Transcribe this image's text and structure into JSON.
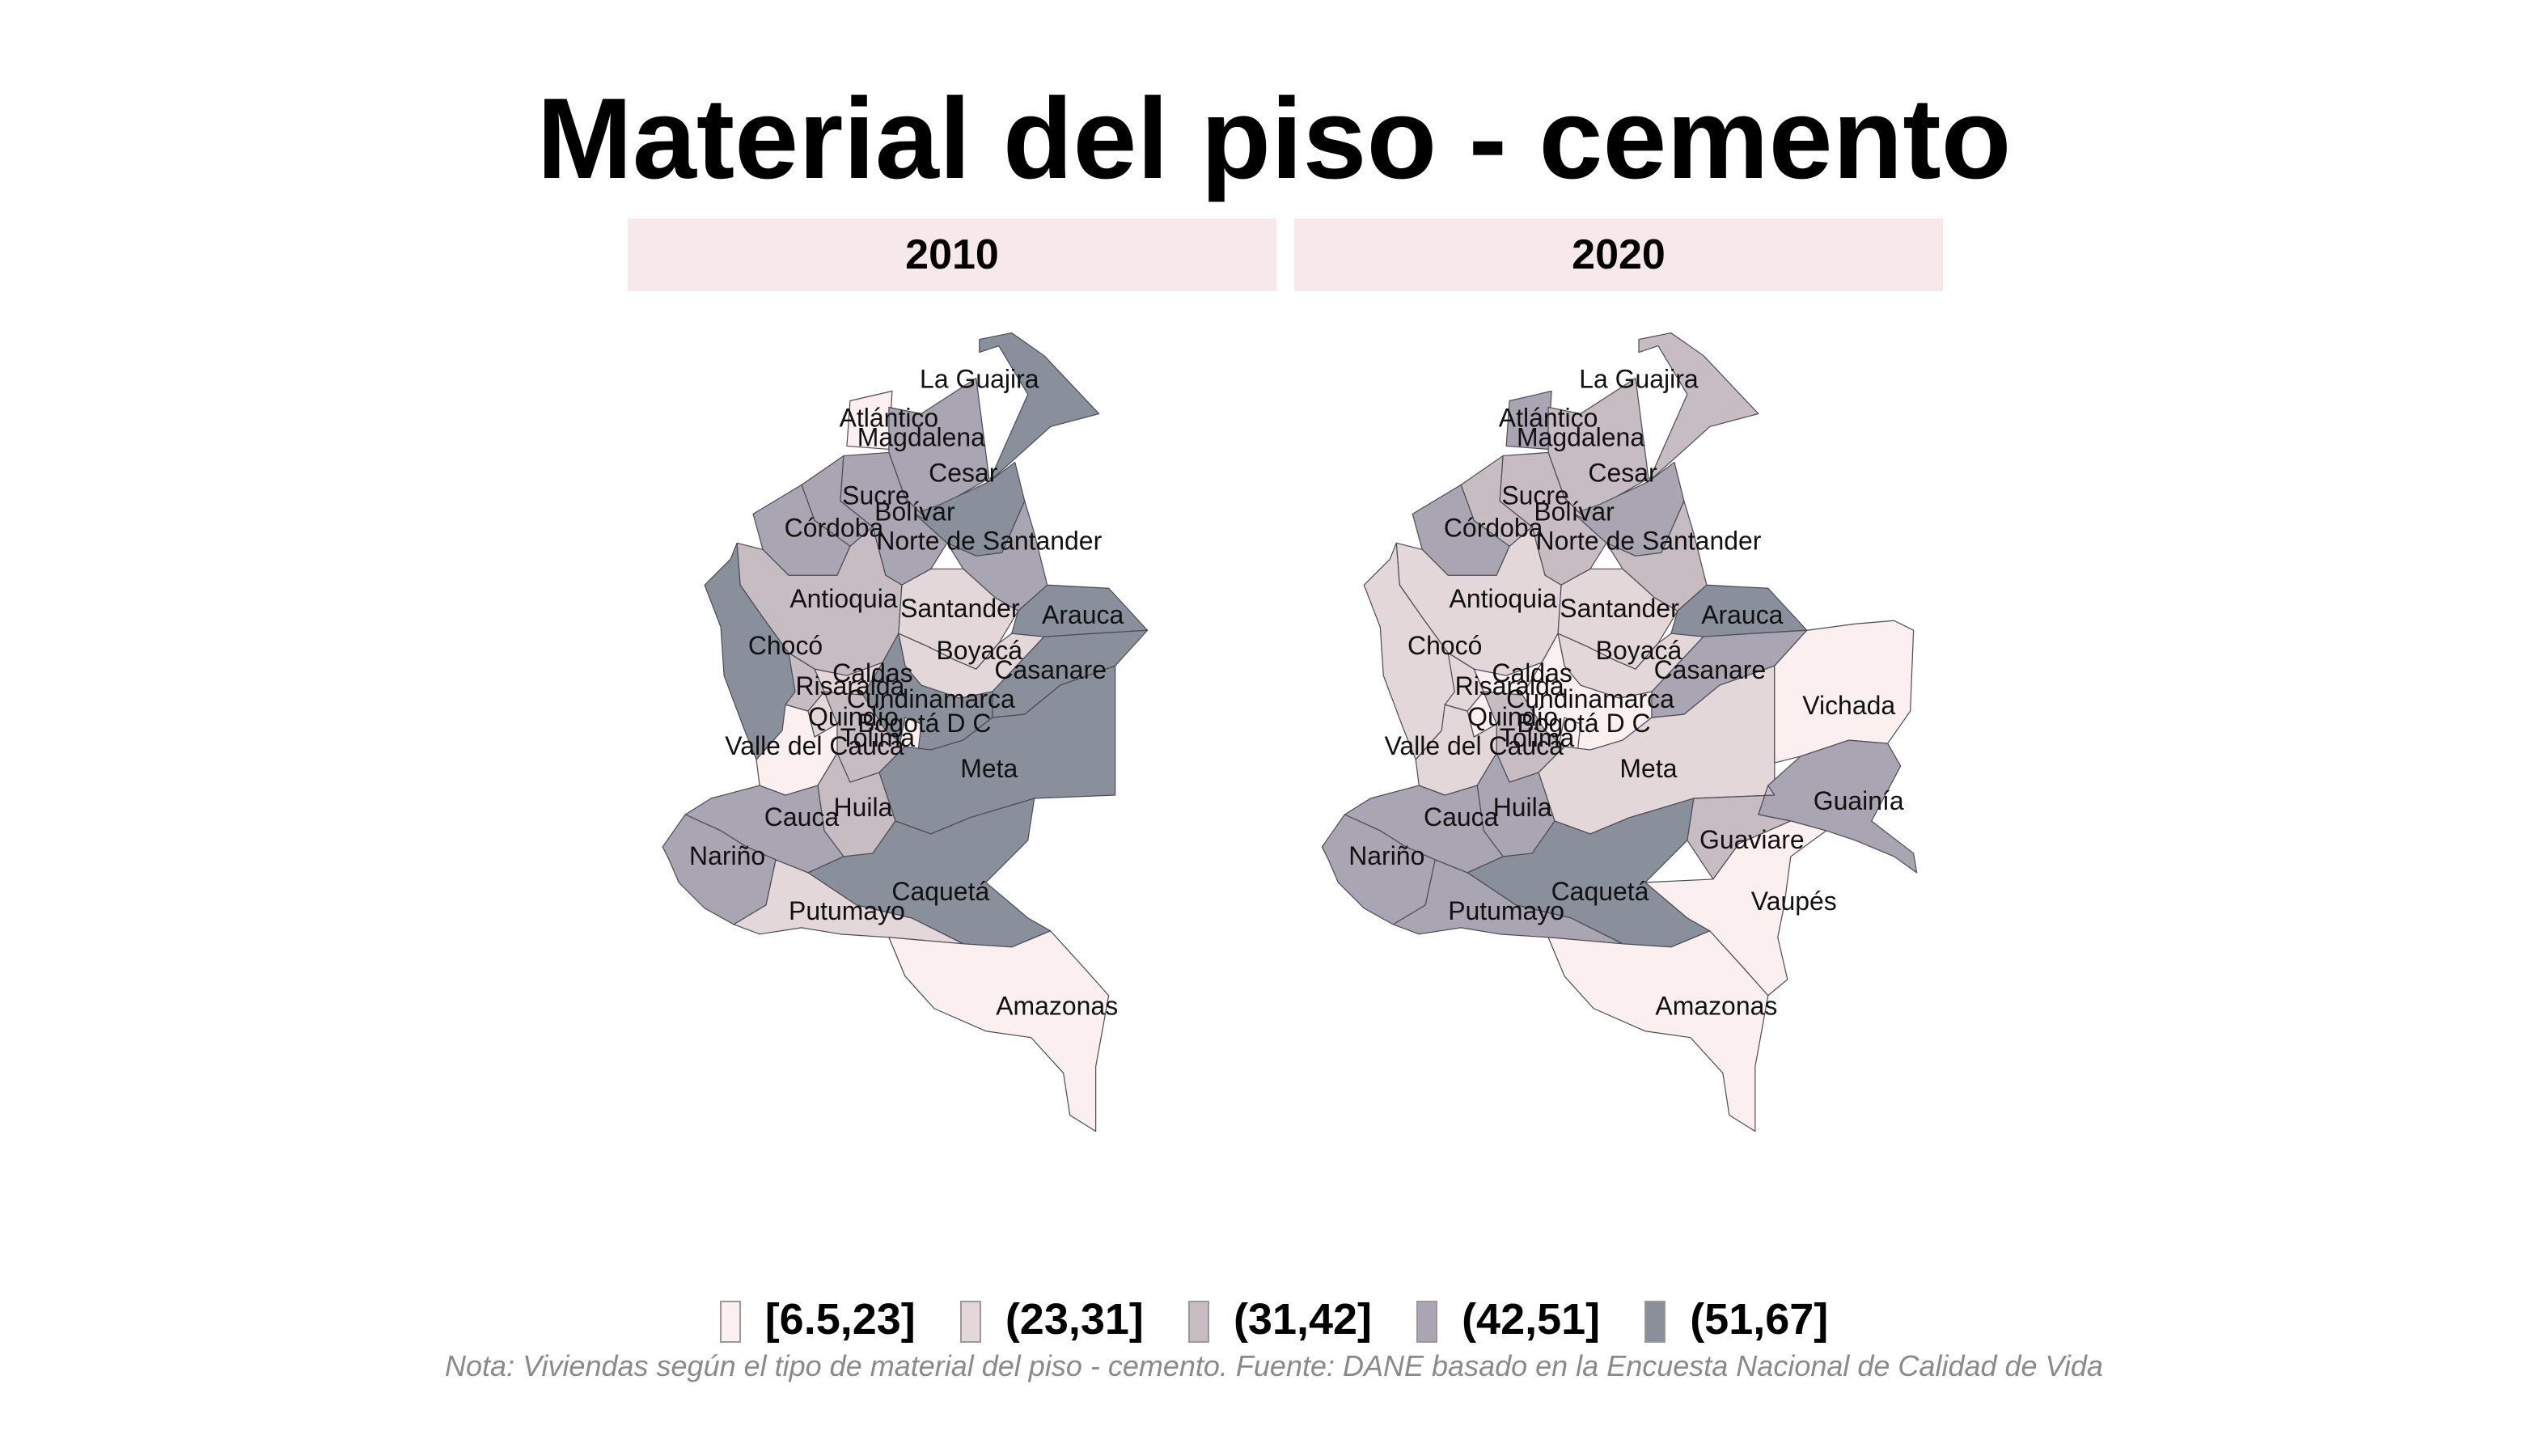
{
  "title": "Material del piso - cemento",
  "panels": [
    {
      "year": "2010"
    },
    {
      "year": "2020"
    }
  ],
  "legend": [
    {
      "label": "[6.5,23]",
      "color": "#fbeff0"
    },
    {
      "label": "(23,31]",
      "color": "#e3d7da"
    },
    {
      "label": "(31,42]",
      "color": "#c8bcc3"
    },
    {
      "label": "(42,51]",
      "color": "#a9a5b2"
    },
    {
      "label": "(51,67]",
      "color": "#8a8f9c"
    }
  ],
  "note": "Nota: Viviendas según el tipo de material del piso - cemento. Fuente: DANE basado en la Encuesta Nacional de Calidad de Vida",
  "departments": [
    "La Guajira",
    "Atlántico",
    "Magdalena",
    "Cesar",
    "Sucre",
    "Bolívar",
    "Córdoba",
    "Norte de Santander",
    "Antioquia",
    "Santander",
    "Arauca",
    "Chocó",
    "Boyacá",
    "Casanare",
    "Caldas",
    "Risaralda",
    "Cundinamarca",
    "Quindío",
    "Bogotá D C",
    "Tolima",
    "Valle del Cauca",
    "Meta",
    "Huila",
    "Cauca",
    "Nariño",
    "Caquetá",
    "Putumayo",
    "Amazonas",
    "Vichada",
    "Guainía",
    "Guaviare",
    "Vaupés"
  ],
  "map_2010_classes": {
    "La Guajira": 5,
    "Atlántico": 1,
    "Magdalena": 4,
    "Cesar": 5,
    "Sucre": 4,
    "Bolívar": 4,
    "Córdoba": 4,
    "Norte de Santander": 4,
    "Antioquia": 3,
    "Santander": 2,
    "Arauca": 5,
    "Chocó": 5,
    "Boyacá": 2,
    "Casanare": 5,
    "Caldas": 2,
    "Risaralda": 3,
    "Cundinamarca": 5,
    "Quindío": 2,
    "Bogotá D C": 1,
    "Tolima": 3,
    "Valle del Cauca": 1,
    "Meta": 5,
    "Huila": 3,
    "Cauca": 4,
    "Nariño": 4,
    "Caquetá": 5,
    "Putumayo": 2,
    "Amazonas": 1
  },
  "map_2020_classes": {
    "La Guajira": 3,
    "Atlántico": 4,
    "Magdalena": 3,
    "Cesar": 4,
    "Sucre": 3,
    "Bolívar": 3,
    "Córdoba": 4,
    "Norte de Santander": 3,
    "Antioquia": 2,
    "Santander": 2,
    "Arauca": 5,
    "Chocó": 2,
    "Boyacá": 2,
    "Casanare": 4,
    "Caldas": 1,
    "Risaralda": 2,
    "Cundinamarca": 1,
    "Quindío": 1,
    "Bogotá D C": 1,
    "Tolima": 3,
    "Valle del Cauca": 2,
    "Meta": 2,
    "Huila": 4,
    "Cauca": 4,
    "Nariño": 4,
    "Caquetá": 5,
    "Putumayo": 4,
    "Amazonas": 1,
    "Vichada": 1,
    "Guainía": 4,
    "Guaviare": 3,
    "Vaupés": 1
  }
}
